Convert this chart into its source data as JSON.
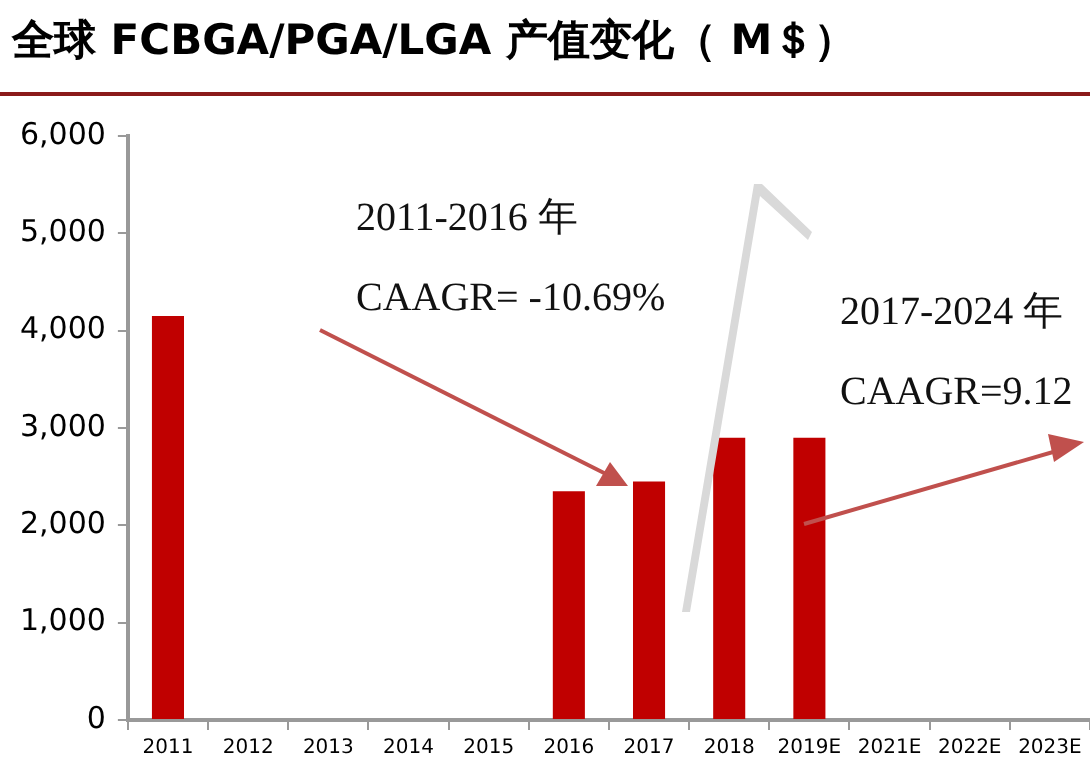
{
  "chart_data": {
    "type": "bar",
    "title": "全球 FCBGA/PGA/LGA 产值变化（ M＄）",
    "categories": [
      "2011",
      "2012",
      "2013",
      "2014",
      "2015",
      "2016",
      "2017",
      "2018",
      "2019E",
      "2021E",
      "2022E",
      "2023E"
    ],
    "values": [
      4150,
      null,
      null,
      null,
      null,
      2350,
      2450,
      2900,
      2900,
      null,
      null,
      null
    ],
    "color": "#c00000",
    "ylim": [
      0,
      6000
    ],
    "yticks": [
      {
        "value": 0,
        "label": "0"
      },
      {
        "value": 1000,
        "label": "1,000"
      },
      {
        "value": 2000,
        "label": "2,000"
      },
      {
        "value": 3000,
        "label": "3,000"
      },
      {
        "value": 4000,
        "label": "4,000"
      },
      {
        "value": 5000,
        "label": "5,000"
      },
      {
        "value": 6000,
        "label": "6,000"
      }
    ],
    "annotations": [
      "2011-2016 年",
      "CAAGR= -10.69%",
      "2017-2024 年",
      "CAAGR=9.12"
    ],
    "grid": false,
    "legend": false
  }
}
